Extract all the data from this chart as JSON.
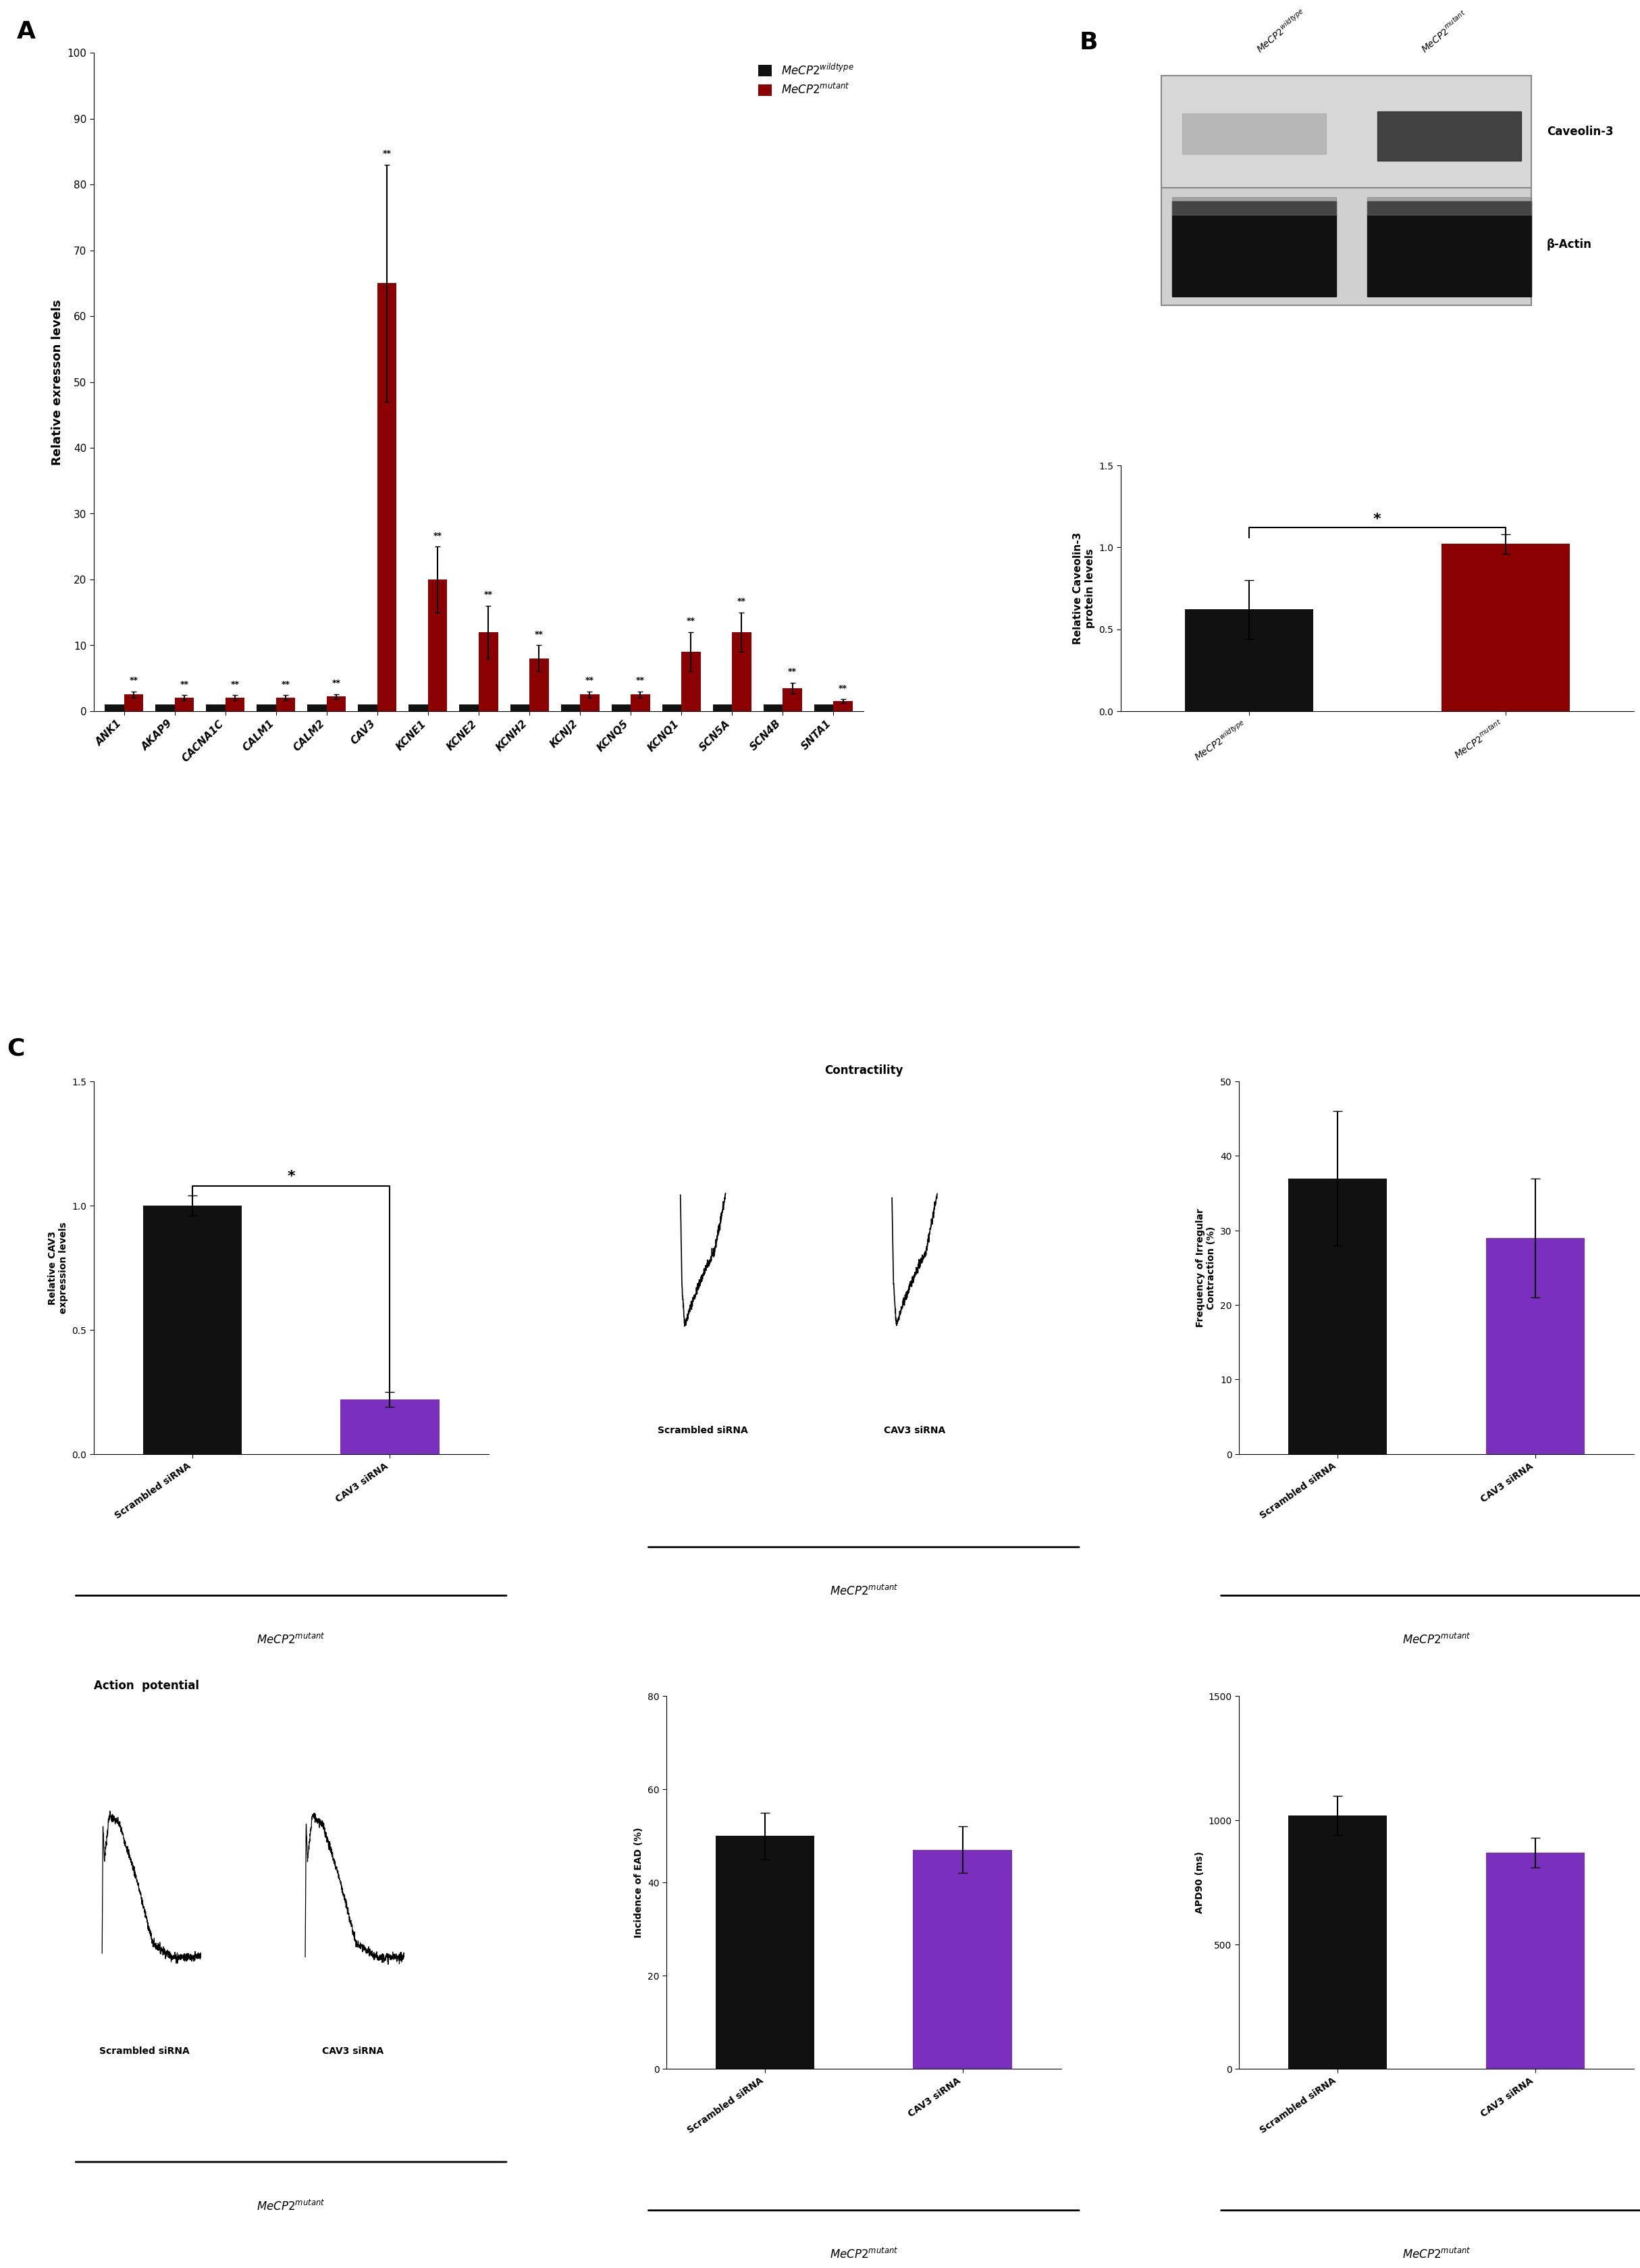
{
  "panel_A": {
    "categories": [
      "ANK1",
      "AKAP9",
      "CACNA1C",
      "CALM1",
      "CALM2",
      "CAV3",
      "KCNE1",
      "KCNE2",
      "KCNH2",
      "KCNJ2",
      "KCNQ5",
      "KCNQ1",
      "SCN5A",
      "SCN4B",
      "SNTA1"
    ],
    "wt_values": [
      1,
      1,
      1,
      1,
      1,
      1,
      1,
      1,
      1,
      1,
      1,
      1,
      1,
      1,
      1
    ],
    "mut_values": [
      2.5,
      2.0,
      2.0,
      2.0,
      2.2,
      65,
      20,
      12,
      8,
      2.5,
      2.5,
      9,
      12,
      3.5,
      1.5
    ],
    "mut_errors": [
      0.5,
      0.4,
      0.4,
      0.4,
      0.4,
      18,
      5,
      4,
      2,
      0.5,
      0.5,
      3,
      3,
      0.8,
      0.3
    ],
    "wt_color": "#111111",
    "mut_color": "#8b0000",
    "ylabel": "Relative exresson levels",
    "ylim": [
      0,
      100
    ],
    "yticks": [
      0,
      10,
      20,
      30,
      40,
      50,
      60,
      70,
      80,
      90,
      100
    ]
  },
  "panel_B_bar": {
    "categories": [
      "$MeCP2^{wildtype}$",
      "$MeCP2^{mutant}$"
    ],
    "values": [
      0.62,
      1.02
    ],
    "errors": [
      0.18,
      0.06
    ],
    "colors": [
      "#111111",
      "#8b0000"
    ],
    "ylabel": "Relative Caveolin-3\nprotein levels",
    "ylim": [
      0,
      1.5
    ],
    "yticks": [
      0.0,
      0.5,
      1.0,
      1.5
    ]
  },
  "panel_C_bar": {
    "categories": [
      "Scrambled siRNA",
      "CAV3 siRNA"
    ],
    "values": [
      1.0,
      0.22
    ],
    "errors": [
      0.04,
      0.03
    ],
    "colors": [
      "#111111",
      "#7b2fbe"
    ],
    "ylabel": "Relative CAV3\nexpression levels",
    "ylim": [
      0,
      1.5
    ],
    "yticks": [
      0.0,
      0.5,
      1.0,
      1.5
    ]
  },
  "panel_C_freq": {
    "categories": [
      "Scrambled siRNA",
      "CAV3 siRNA"
    ],
    "values": [
      37,
      29
    ],
    "errors": [
      9,
      8
    ],
    "colors": [
      "#111111",
      "#7b2fbe"
    ],
    "ylabel": "Frequency of Irregular\nContraction (%)",
    "ylim": [
      0,
      50
    ],
    "yticks": [
      0,
      10,
      20,
      30,
      40,
      50
    ]
  },
  "panel_C_ead": {
    "categories": [
      "Scrambled siRNA",
      "CAV3 siRNA"
    ],
    "values": [
      50,
      47
    ],
    "errors": [
      5,
      5
    ],
    "colors": [
      "#111111",
      "#7b2fbe"
    ],
    "ylabel": "Incidence of EAD (%)",
    "ylim": [
      0,
      80
    ],
    "yticks": [
      0,
      20,
      40,
      60,
      80
    ]
  },
  "panel_C_apd": {
    "categories": [
      "Scrambled siRNA",
      "CAV3 siRNA"
    ],
    "values": [
      1020,
      870
    ],
    "errors": [
      80,
      60
    ],
    "colors": [
      "#111111",
      "#7b2fbe"
    ],
    "ylabel": "APD90 (ms)",
    "ylim": [
      0,
      1500
    ],
    "yticks": [
      0,
      500,
      1000,
      1500
    ]
  },
  "background_color": "#ffffff"
}
